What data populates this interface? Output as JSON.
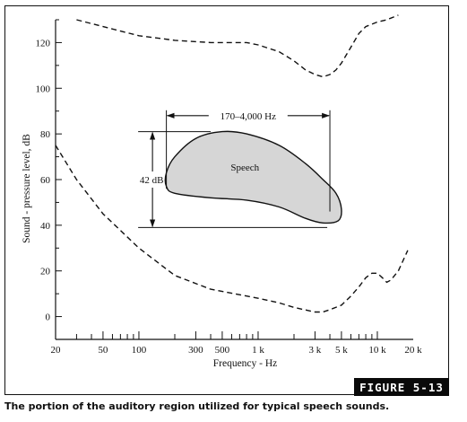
{
  "figure_label": "FIGURE 5-13",
  "caption": "The portion of the auditory region utilized for typical speech sounds.",
  "chart_data": {
    "type": "line",
    "xlabel": "Frequency - Hz",
    "ylabel": "Sound - pressure level, dB",
    "xscale": "log",
    "xlim": [
      20,
      20000
    ],
    "ylim": [
      -10,
      130
    ],
    "x_tick_labels": [
      {
        "value": 20,
        "label": "20"
      },
      {
        "value": 50,
        "label": "50"
      },
      {
        "value": 100,
        "label": "100"
      },
      {
        "value": 300,
        "label": "300"
      },
      {
        "value": 500,
        "label": "500"
      },
      {
        "value": 1000,
        "label": "1 k"
      },
      {
        "value": 3000,
        "label": "3 k"
      },
      {
        "value": 5000,
        "label": "5 k"
      },
      {
        "value": 10000,
        "label": "10 k"
      },
      {
        "value": 20000,
        "label": "20 k"
      }
    ],
    "x_minor_ticks": [
      30,
      40,
      60,
      70,
      80,
      90,
      200,
      400,
      600,
      700,
      800,
      900,
      2000,
      4000,
      6000,
      7000,
      8000,
      9000
    ],
    "y_ticks": [
      0,
      20,
      40,
      60,
      80,
      100,
      120
    ],
    "y_minor_ticks": [
      -10,
      10,
      30,
      50,
      70,
      90,
      110,
      130
    ],
    "grid": false,
    "legend": "none",
    "series": [
      {
        "style": "dashed",
        "x": [
          30,
          50,
          100,
          200,
          400,
          800,
          1000,
          1500,
          2000,
          2500,
          3000,
          3500,
          4000,
          4500,
          5000,
          6000,
          7000,
          8000,
          10000,
          12000,
          15000
        ],
        "y": [
          130,
          127,
          123,
          121,
          120,
          120,
          119,
          116,
          112,
          108,
          106,
          105,
          106,
          108,
          111,
          118,
          124,
          127,
          129,
          130,
          132
        ]
      },
      {
        "style": "dashed",
        "x": [
          20,
          30,
          50,
          100,
          200,
          400,
          800,
          1000,
          1500,
          2000,
          3000,
          3500,
          4000,
          5000,
          6000,
          7000,
          8000,
          9000,
          10000,
          11000,
          12000,
          13000,
          15000,
          18000
        ],
        "y": [
          75,
          60,
          45,
          30,
          18,
          12,
          9,
          8,
          6,
          4,
          2,
          2,
          3,
          5,
          9,
          13,
          17,
          19,
          19,
          17,
          15,
          16,
          20,
          29
        ]
      }
    ],
    "regions": [
      {
        "label": "Speech",
        "fill": "#d6d6d6",
        "outline_x": [
          170,
          200,
          300,
          500,
          800,
          1500,
          2500,
          3500,
          4500,
          5000,
          4700,
          3500,
          2500,
          1500,
          800,
          400,
          200,
          170,
          170
        ],
        "outline_y": [
          63,
          70,
          78,
          81,
          80,
          75,
          67,
          60,
          54,
          47,
          42,
          41,
          43,
          48,
          51,
          52,
          54,
          57,
          63
        ]
      }
    ],
    "annotations": [
      {
        "text": "170–4,000 Hz",
        "type": "horizontal dimension",
        "from_x": 170,
        "to_x": 4000,
        "y": 88
      },
      {
        "text": "42 dB",
        "type": "vertical dimension",
        "from_y": 39,
        "to_y": 81,
        "x": 130
      }
    ]
  }
}
